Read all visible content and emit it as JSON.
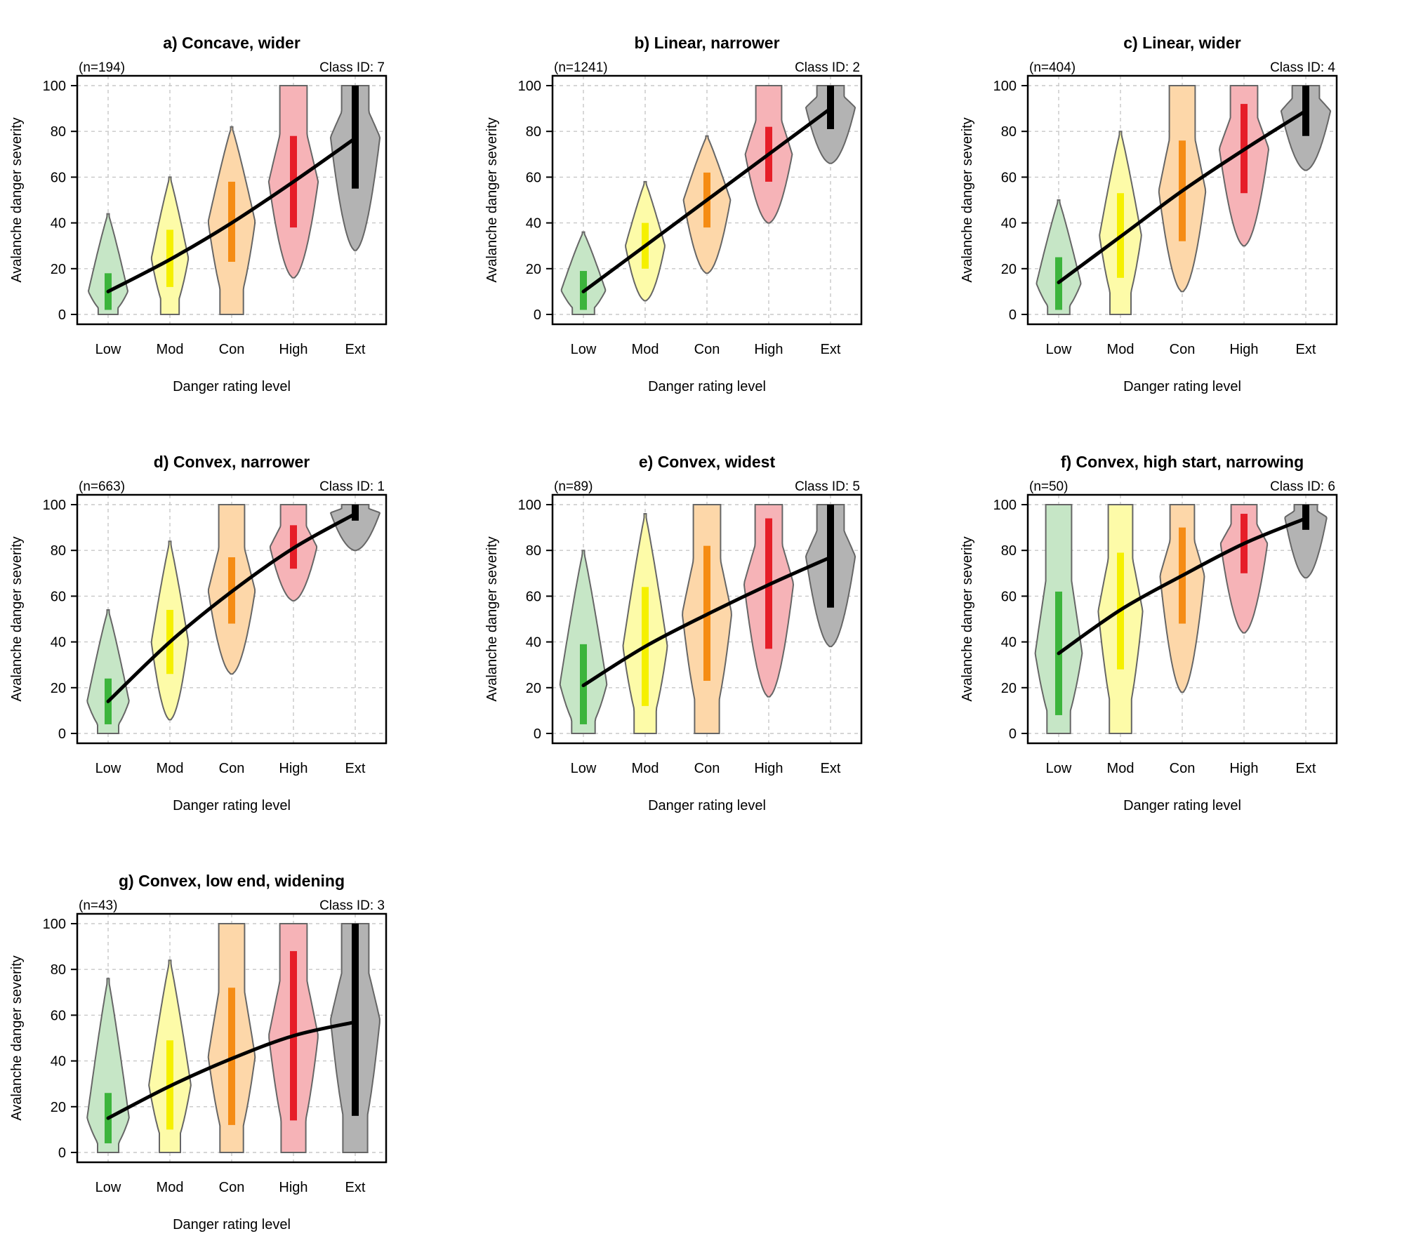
{
  "figure": {
    "x_axis_label": "Danger rating level",
    "y_axis_label": "Avalanche danger severity",
    "categories": [
      "Low",
      "Mod",
      "Con",
      "High",
      "Ext"
    ],
    "y_ticks": [
      0,
      20,
      40,
      60,
      80,
      100
    ],
    "colors": {
      "fill": [
        "#c6e6c6",
        "#fdfba8",
        "#fdd7a9",
        "#f6b3b7",
        "#b3b3b3"
      ],
      "bar": [
        "#3cb43c",
        "#f5f000",
        "#f58c14",
        "#e61e28",
        "#000000"
      ],
      "violin_outline": "#666666",
      "mean_line": "#000000",
      "grid": "#c8c8c8"
    }
  },
  "chart_data": [
    {
      "type": "violin",
      "title": "a) Concave, wider",
      "n_label": "(n=194)",
      "class_label": "Class ID: 7",
      "ylim": [
        0,
        100
      ],
      "mean_line": [
        10,
        24,
        40,
        58,
        77
      ],
      "iqr": [
        [
          2,
          18
        ],
        [
          12,
          37
        ],
        [
          23,
          58
        ],
        [
          38,
          78
        ],
        [
          55,
          100
        ]
      ],
      "range": [
        [
          0,
          44
        ],
        [
          0,
          60
        ],
        [
          0,
          82
        ],
        [
          16,
          100
        ],
        [
          28,
          100
        ]
      ],
      "max_half_width": [
        0.32,
        0.3,
        0.38,
        0.4,
        0.4
      ]
    },
    {
      "type": "violin",
      "title": "b) Linear, narrower",
      "n_label": "(n=1241)",
      "class_label": "Class ID: 2",
      "ylim": [
        0,
        100
      ],
      "mean_line": [
        10,
        30,
        50,
        70,
        90
      ],
      "iqr": [
        [
          2,
          19
        ],
        [
          20,
          40
        ],
        [
          38,
          62
        ],
        [
          58,
          82
        ],
        [
          81,
          100
        ]
      ],
      "range": [
        [
          0,
          36
        ],
        [
          6,
          58
        ],
        [
          18,
          78
        ],
        [
          40,
          100
        ],
        [
          66,
          100
        ]
      ],
      "max_half_width": [
        0.36,
        0.32,
        0.38,
        0.38,
        0.4
      ]
    },
    {
      "type": "violin",
      "title": "c) Linear, wider",
      "n_label": "(n=404)",
      "class_label": "Class ID: 4",
      "ylim": [
        0,
        100
      ],
      "mean_line": [
        14,
        34,
        54,
        72,
        89
      ],
      "iqr": [
        [
          2,
          25
        ],
        [
          16,
          53
        ],
        [
          32,
          76
        ],
        [
          53,
          92
        ],
        [
          78,
          100
        ]
      ],
      "range": [
        [
          0,
          50
        ],
        [
          0,
          80
        ],
        [
          10,
          100
        ],
        [
          30,
          100
        ],
        [
          63,
          100
        ]
      ],
      "max_half_width": [
        0.36,
        0.34,
        0.38,
        0.4,
        0.4
      ]
    },
    {
      "type": "violin",
      "title": "d) Convex, narrower",
      "n_label": "(n=663)",
      "class_label": "Class ID: 1",
      "ylim": [
        0,
        100
      ],
      "mean_line": [
        14,
        40,
        62,
        81,
        96
      ],
      "iqr": [
        [
          4,
          24
        ],
        [
          26,
          54
        ],
        [
          48,
          77
        ],
        [
          72,
          91
        ],
        [
          93,
          100
        ]
      ],
      "range": [
        [
          0,
          54
        ],
        [
          6,
          84
        ],
        [
          26,
          100
        ],
        [
          58,
          100
        ],
        [
          80,
          100
        ]
      ],
      "max_half_width": [
        0.34,
        0.3,
        0.38,
        0.38,
        0.4
      ]
    },
    {
      "type": "violin",
      "title": "e) Convex, widest",
      "n_label": "(n=89)",
      "class_label": "Class ID: 5",
      "ylim": [
        0,
        100
      ],
      "mean_line": [
        21,
        38,
        52,
        65,
        77
      ],
      "iqr": [
        [
          4,
          39
        ],
        [
          12,
          64
        ],
        [
          23,
          82
        ],
        [
          37,
          94
        ],
        [
          55,
          100
        ]
      ],
      "range": [
        [
          0,
          80
        ],
        [
          0,
          96
        ],
        [
          0,
          100
        ],
        [
          16,
          100
        ],
        [
          38,
          100
        ]
      ],
      "max_half_width": [
        0.38,
        0.36,
        0.4,
        0.4,
        0.4
      ]
    },
    {
      "type": "violin",
      "title": "f) Convex, high start, narrowing",
      "n_label": "(n=50)",
      "class_label": "Class ID: 6",
      "ylim": [
        0,
        100
      ],
      "mean_line": [
        35,
        54,
        69,
        83,
        94
      ],
      "iqr": [
        [
          8,
          62
        ],
        [
          28,
          79
        ],
        [
          48,
          90
        ],
        [
          70,
          96
        ],
        [
          89,
          100
        ]
      ],
      "range": [
        [
          0,
          100
        ],
        [
          0,
          100
        ],
        [
          18,
          100
        ],
        [
          44,
          100
        ],
        [
          68,
          100
        ]
      ],
      "max_half_width": [
        0.38,
        0.36,
        0.36,
        0.38,
        0.34
      ]
    },
    {
      "type": "violin",
      "title": "g) Convex, low end, widening",
      "n_label": "(n=43)",
      "class_label": "Class ID: 3",
      "ylim": [
        0,
        100
      ],
      "mean_line": [
        15,
        29,
        41,
        51,
        57
      ],
      "iqr": [
        [
          4,
          26
        ],
        [
          10,
          49
        ],
        [
          12,
          72
        ],
        [
          14,
          88
        ],
        [
          16,
          100
        ]
      ],
      "range": [
        [
          0,
          76
        ],
        [
          0,
          84
        ],
        [
          0,
          100
        ],
        [
          0,
          100
        ],
        [
          0,
          100
        ]
      ],
      "max_half_width": [
        0.34,
        0.34,
        0.38,
        0.4,
        0.4
      ]
    }
  ]
}
